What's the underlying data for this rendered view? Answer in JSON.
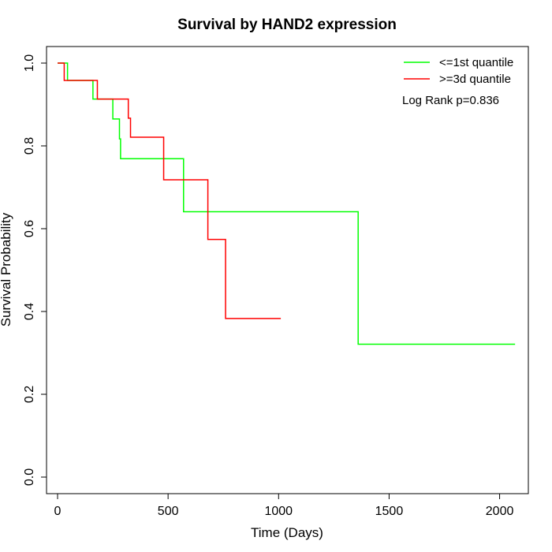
{
  "chart_data": {
    "type": "line",
    "title": "Survival by HAND2 expression",
    "xlabel": "Time (Days)",
    "ylabel": "Survival Probability",
    "xlim": [
      -50,
      2130
    ],
    "ylim": [
      -0.04,
      1.04
    ],
    "xticks": [
      0,
      500,
      1000,
      1500,
      2000
    ],
    "yticks": [
      0.0,
      0.2,
      0.4,
      0.6,
      0.8,
      1.0
    ],
    "xtick_labels": [
      "0",
      "500",
      "1000",
      "1500",
      "2000"
    ],
    "ytick_labels": [
      "0.0",
      "0.2",
      "0.4",
      "0.6",
      "0.8",
      "1.0"
    ],
    "grid": false,
    "legend_position": "top-right",
    "annotation": "Log Rank p=0.836",
    "series": [
      {
        "name": "<=1st quantile",
        "color": "#00ff00",
        "step": true,
        "x": [
          0,
          45,
          160,
          250,
          280,
          285,
          570,
          1360,
          2070
        ],
        "y": [
          1.0,
          0.958,
          0.913,
          0.865,
          0.817,
          0.769,
          0.641,
          0.321,
          0.321
        ]
      },
      {
        "name": ">=3d quantile",
        "color": "#ff0000",
        "step": true,
        "x": [
          0,
          30,
          180,
          320,
          330,
          480,
          680,
          760,
          1010
        ],
        "y": [
          1.0,
          0.958,
          0.913,
          0.867,
          0.821,
          0.718,
          0.574,
          0.383,
          0.383
        ]
      }
    ]
  }
}
